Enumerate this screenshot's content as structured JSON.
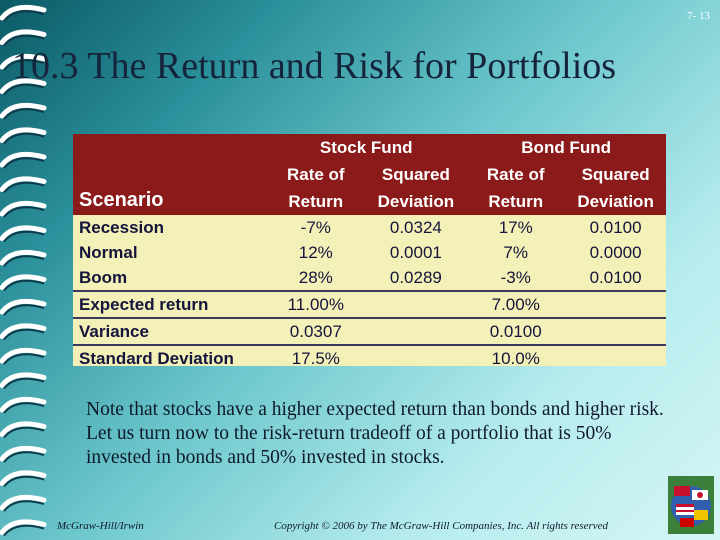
{
  "slide": {
    "number": "7- 13",
    "title": "10.3 The Return and Risk for Portfolios"
  },
  "table": {
    "group_headers": [
      "Stock Fund",
      "Bond Fund"
    ],
    "subheaders_line1": [
      "Rate of",
      "Squared",
      "Rate of",
      "Squared"
    ],
    "subheaders_line2": [
      "Return",
      "Deviation",
      "Return",
      "Deviation"
    ],
    "scenario_label": "Scenario",
    "rows": [
      {
        "label": "Recession",
        "values": [
          "-7%",
          "0.0324",
          "17%",
          "0.0100"
        ]
      },
      {
        "label": "Normal",
        "values": [
          "12%",
          "0.0001",
          "7%",
          "0.0000"
        ]
      },
      {
        "label": "Boom",
        "values": [
          "28%",
          "0.0289",
          "-3%",
          "0.0100"
        ]
      }
    ],
    "summary": [
      {
        "label": "Expected return",
        "stock": "11.00%",
        "bond": "7.00%"
      },
      {
        "label": "Variance",
        "stock": "0.0307",
        "bond": "0.0100"
      },
      {
        "label": "Standard Deviation",
        "stock": "17.5%",
        "bond": "10.0%"
      }
    ]
  },
  "note": "Note that stocks have a higher expected return than bonds and higher risk. Let us turn now to the risk-return tradeoff of a portfolio that is 50% invested in bonds and 50% invested in stocks.",
  "footer": {
    "publisher": "McGraw-Hill/Irwin",
    "copyright": "Copyright © 2006 by The McGraw-Hill Companies, Inc. All rights reserved"
  },
  "icons": [
    "spiral-binding-icon",
    "globe-flags-icon"
  ],
  "colors": {
    "header_bg": "#8b1a1a",
    "table_bg": "#f4f1b8",
    "title_text": "#15243b"
  }
}
